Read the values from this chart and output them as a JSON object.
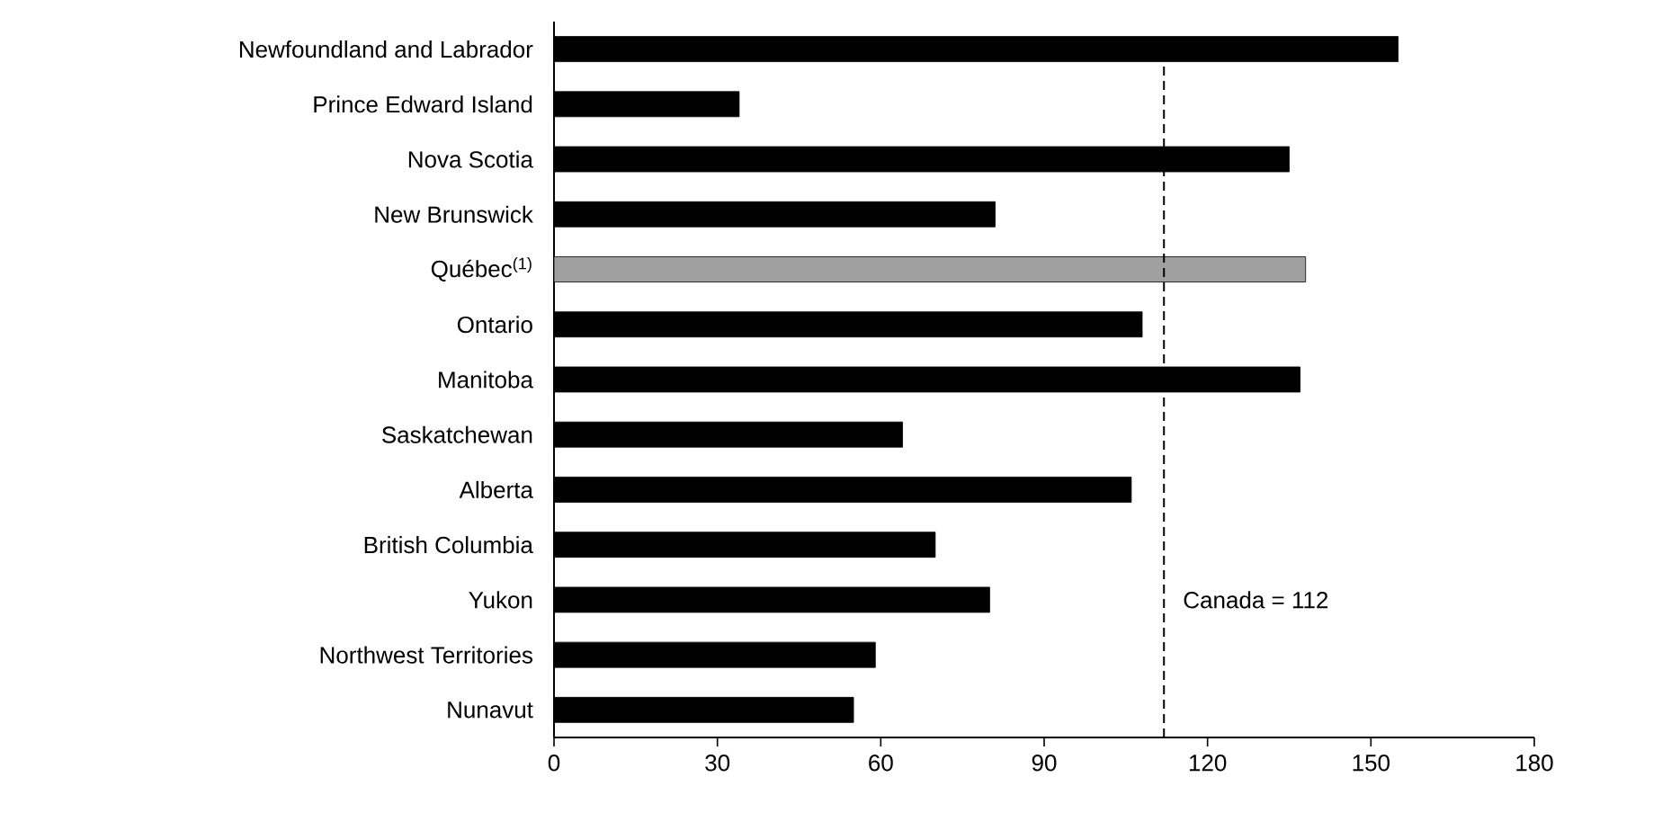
{
  "chart_data": {
    "type": "bar",
    "orientation": "horizontal",
    "categories": [
      "Newfoundland and Labrador",
      "Prince Edward Island",
      "Nova Scotia",
      "New Brunswick",
      "Québec$^{(1)}$",
      "Ontario",
      "Manitoba",
      "Saskatchewan",
      "Alberta",
      "British Columbia",
      "Yukon",
      "Northwest Territories",
      "Nunavut"
    ],
    "values": [
      155,
      34,
      135,
      81,
      138,
      108,
      137,
      64,
      106,
      70,
      80,
      59,
      55
    ],
    "colors": [
      "#000000",
      "#000000",
      "#000000",
      "#000000",
      "#a0a0a0",
      "#000000",
      "#000000",
      "#000000",
      "#000000",
      "#000000",
      "#000000",
      "#000000",
      "#000000"
    ],
    "xlim": [
      0,
      180
    ],
    "xticks": [
      0,
      30,
      60,
      90,
      120,
      150,
      180
    ],
    "ref_lines": [
      {
        "axis": "x",
        "value": 112,
        "label": "Canada = 112",
        "line_style": "dashed",
        "color": "#000000"
      }
    ],
    "grid": false
  }
}
